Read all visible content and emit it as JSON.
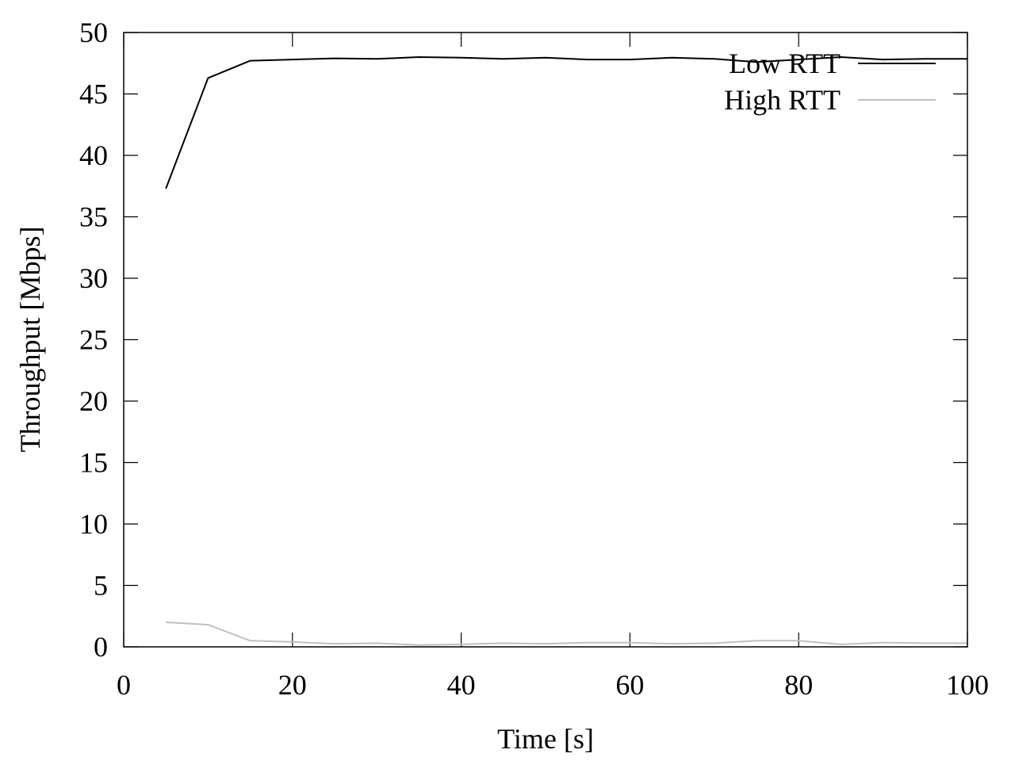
{
  "chart_data": {
    "type": "line",
    "title": "",
    "xlabel": "Time [s]",
    "ylabel": "Throughput [Mbps]",
    "xlim": [
      0,
      100
    ],
    "ylim": [
      0,
      50
    ],
    "xticks": [
      0,
      20,
      40,
      60,
      80,
      100
    ],
    "yticks": [
      0,
      5,
      10,
      15,
      20,
      25,
      30,
      35,
      40,
      45,
      50
    ],
    "grid": false,
    "legend_position": "top-right",
    "x": [
      5,
      10,
      15,
      20,
      25,
      30,
      35,
      40,
      45,
      50,
      55,
      60,
      65,
      70,
      75,
      80,
      85,
      90,
      95,
      100
    ],
    "series": [
      {
        "name": "Low RTT",
        "color": "#000000",
        "values": [
          37.3,
          46.3,
          47.7,
          47.8,
          47.9,
          47.85,
          48.0,
          47.95,
          47.85,
          47.95,
          47.8,
          47.8,
          47.95,
          47.85,
          47.6,
          47.8,
          48.0,
          47.8,
          47.85,
          47.85
        ]
      },
      {
        "name": "High RTT",
        "color": "#c0c0c0",
        "values": [
          2.0,
          1.8,
          0.5,
          0.4,
          0.25,
          0.3,
          0.15,
          0.2,
          0.3,
          0.25,
          0.35,
          0.35,
          0.25,
          0.3,
          0.5,
          0.5,
          0.2,
          0.35,
          0.3,
          0.3
        ]
      }
    ]
  }
}
